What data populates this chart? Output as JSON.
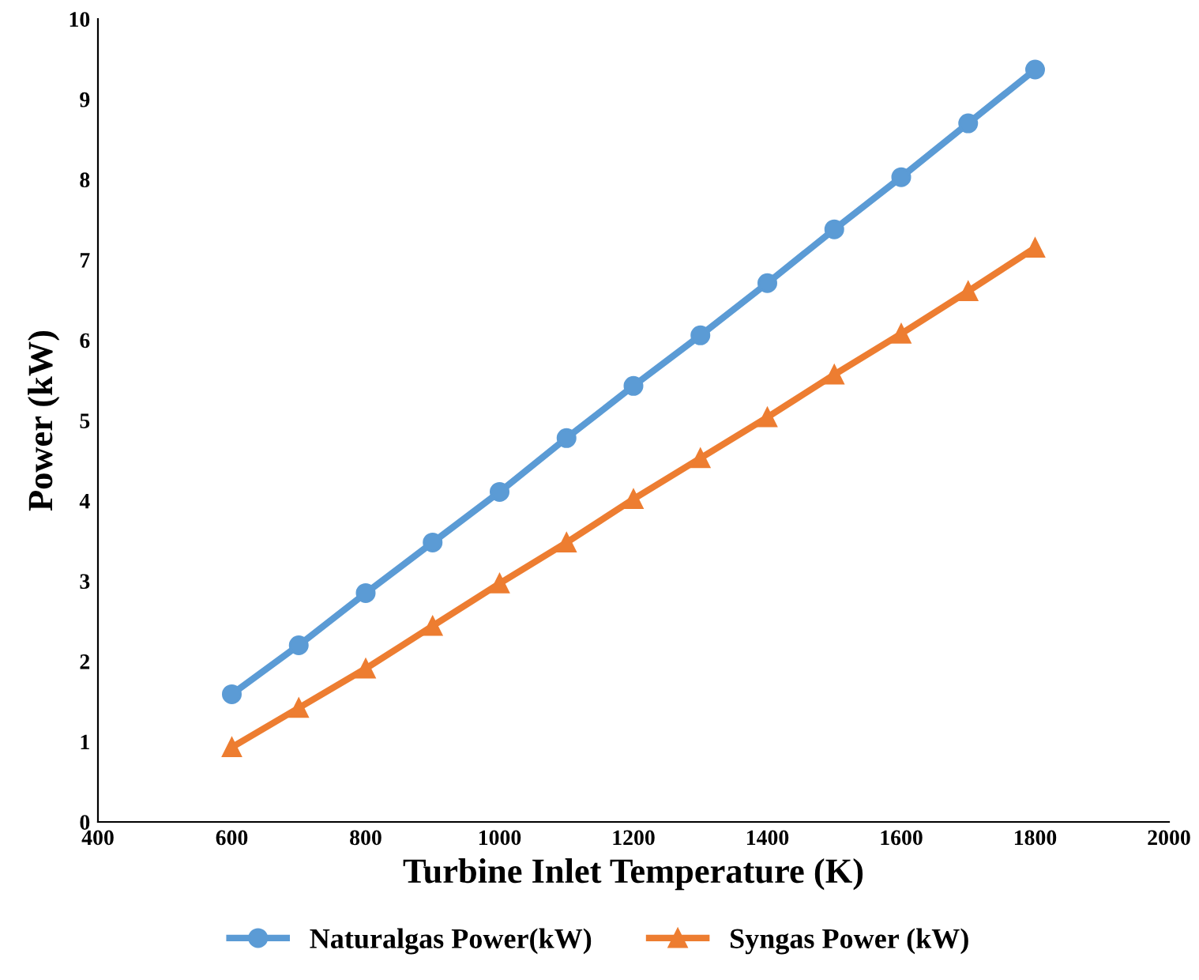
{
  "chart_data": {
    "type": "line",
    "xlabel": "Turbine Inlet Temperature (K)",
    "ylabel": "Power (kW)",
    "x": [
      600,
      700,
      800,
      900,
      1000,
      1100,
      1200,
      1300,
      1400,
      1500,
      1600,
      1700,
      1800
    ],
    "series": [
      {
        "name": "Naturalgas Power(kW)",
        "color": "#5b9bd5",
        "marker": "circle",
        "values": [
          1.59,
          2.2,
          2.85,
          3.48,
          4.11,
          4.78,
          5.43,
          6.06,
          6.71,
          7.38,
          8.03,
          8.7,
          9.37
        ]
      },
      {
        "name": "Syngas Power (kW)",
        "color": "#ed7d31",
        "marker": "triangle",
        "values": [
          0.93,
          1.42,
          1.91,
          2.44,
          2.97,
          3.48,
          4.02,
          4.53,
          5.04,
          5.57,
          6.08,
          6.61,
          7.15
        ]
      }
    ],
    "xlim": [
      400,
      2000
    ],
    "xticks": [
      400,
      600,
      800,
      1000,
      1200,
      1400,
      1600,
      1800,
      2000
    ],
    "ylim": [
      0,
      10
    ],
    "yticks": [
      0,
      1,
      2,
      3,
      4,
      5,
      6,
      7,
      8,
      9,
      10
    ],
    "grid": false,
    "legend": "bottom",
    "line_style": "solid"
  }
}
